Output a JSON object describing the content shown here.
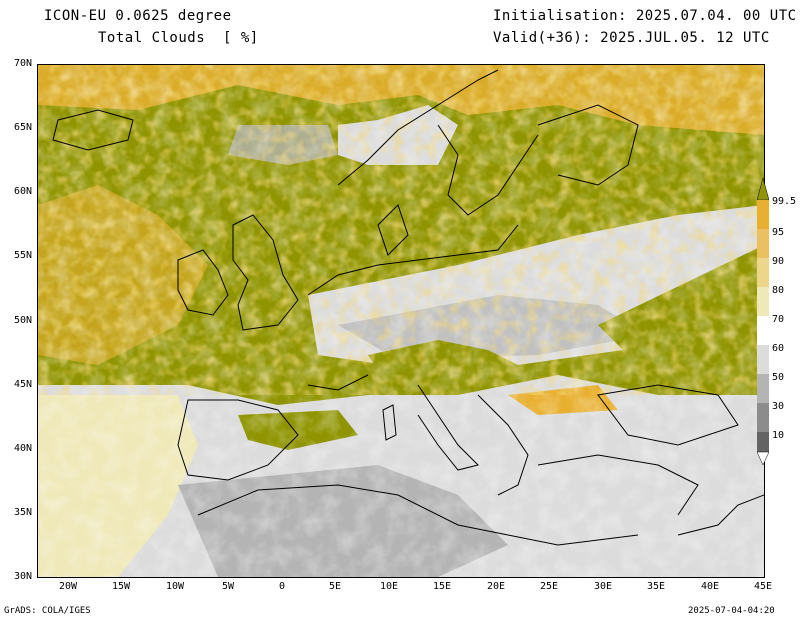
{
  "header": {
    "model": "ICON-EU 0.0625 degree",
    "variable": "Total Clouds  [ %]",
    "init": "Initialisation: 2025.07.04. 00 UTC",
    "valid": "Valid(+36): 2025.JUL.05. 12 UTC"
  },
  "map": {
    "lat_labels": [
      "70N",
      "65N",
      "60N",
      "55N",
      "50N",
      "45N",
      "40N",
      "35N",
      "30N"
    ],
    "lon_labels": [
      "20W",
      "15W",
      "10W",
      "5W",
      "0",
      "5E",
      "10E",
      "15E",
      "20E",
      "25E",
      "30E",
      "35E",
      "40E",
      "45E"
    ],
    "extent": {
      "lon_min": -23,
      "lon_max": 45,
      "lat_min": 30,
      "lat_max": 70
    }
  },
  "legend": {
    "labels": [
      "99.5",
      "95",
      "90",
      "80",
      "70",
      "60",
      "50",
      "30",
      "10"
    ],
    "colors": [
      "#8f9400",
      "#e8b030",
      "#eac060",
      "#ecd68a",
      "#efe8b8",
      "#dcdcdc",
      "#b4b4b4",
      "#8c8c8c",
      "#646464"
    ]
  },
  "footer": {
    "left": "GrADS: COLA/IGES",
    "right": "2025-07-04-04:20"
  }
}
